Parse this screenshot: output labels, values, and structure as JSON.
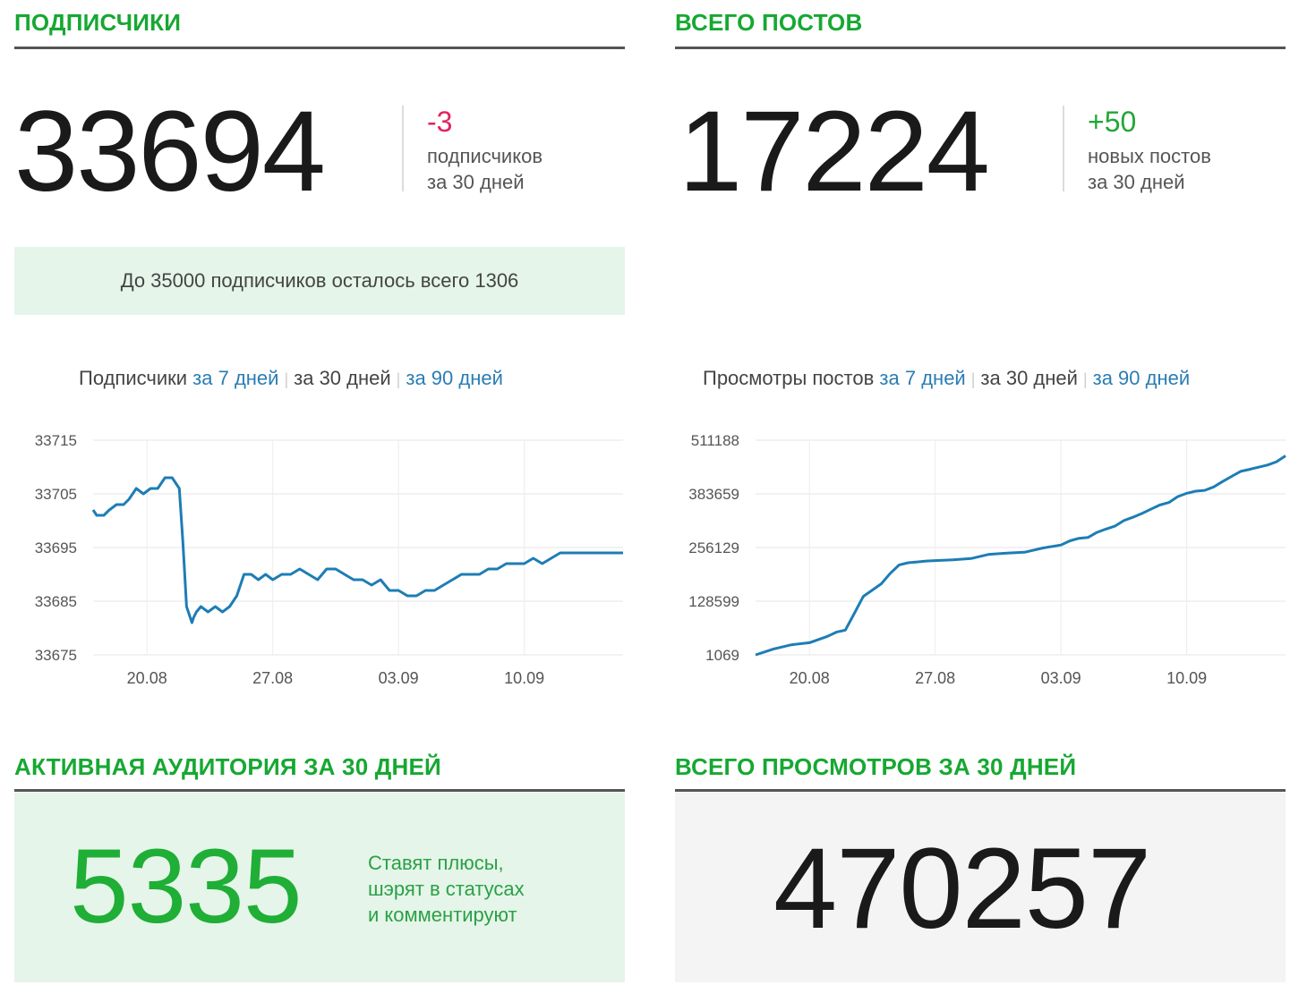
{
  "subscribers": {
    "title": "ПОДПИСЧИКИ",
    "count": "33694",
    "delta": "-3",
    "delta_line1": "подписчиков",
    "delta_line2": "за 30 дней",
    "notice": "До 35000 подписчиков осталось всего 1306"
  },
  "posts": {
    "title": "ВСЕГО ПОСТОВ",
    "count": "17224",
    "delta": "+50",
    "delta_line1": "новых постов",
    "delta_line2": "за 30 дней"
  },
  "subs_chart_header": {
    "label": "Подписчики",
    "link_7": "за 7 дней",
    "current_30": "за 30 дней",
    "link_90": "за 90 дней",
    "sep": "|"
  },
  "views_chart_header": {
    "label": "Просмотры постов",
    "link_7": "за 7 дней",
    "current_30": "за 30 дней",
    "link_90": "за 90 дней",
    "sep": "|"
  },
  "active": {
    "title": "АКТИВНАЯ АУДИТОРИЯ ЗА 30 ДНЕЙ",
    "count": "5335",
    "line1": "Ставят плюсы,",
    "line2": "шэрят в статусах",
    "line3": "и комментируют"
  },
  "views_total": {
    "title": "ВСЕГО ПРОСМОТРОВ ЗА 30 ДНЕЙ",
    "count": "470257"
  },
  "colors": {
    "accent_green": "#16a832",
    "line_blue": "#1d7db5",
    "negative": "#e0245e",
    "link": "#2a7db3"
  },
  "chart_data": [
    {
      "type": "line",
      "title": "",
      "ylim": [
        33675,
        33715
      ],
      "yticks": [
        "33715",
        "33705",
        "33695",
        "33685",
        "33675"
      ],
      "x_ticks": [
        {
          "label": "20.08",
          "x": 3
        },
        {
          "label": "27.08",
          "x": 10
        },
        {
          "label": "03.09",
          "x": 17
        },
        {
          "label": "10.09",
          "x": 24
        }
      ],
      "xlim": [
        0,
        29.5
      ],
      "grid": true,
      "series": [
        {
          "x": [
            0,
            0.2,
            0.6,
            0.9,
            1.3,
            1.7,
            2.0,
            2.4,
            2.8,
            3.2,
            3.6,
            4.0,
            4.4,
            4.8,
            5.0,
            5.2,
            5.5,
            5.6,
            5.75,
            6.0,
            6.4,
            6.8,
            7.2,
            7.6,
            8.0,
            8.4,
            8.8,
            9.2,
            9.6,
            10.0,
            10.5,
            11.0,
            11.5,
            12.0,
            12.5,
            13.0,
            13.5,
            14.0,
            14.5,
            15.0,
            15.5,
            16.0,
            16.5,
            17.0,
            17.5,
            18.0,
            18.5,
            19.0,
            19.5,
            20.0,
            20.5,
            21.0,
            21.5,
            22.0,
            22.5,
            23.0,
            23.5,
            24.0,
            24.5,
            25.0,
            25.5,
            26.0,
            26.5,
            27.0,
            27.5,
            28.0,
            28.5,
            29.0,
            29.5
          ],
          "values": [
            33702,
            33701,
            33701,
            33702,
            33703,
            33703,
            33704,
            33706,
            33705,
            33706,
            33706,
            33708,
            33708,
            33706,
            33696,
            33684,
            33681,
            33682,
            33683,
            33684,
            33683,
            33684,
            33683,
            33684,
            33686,
            33690,
            33690,
            33689,
            33690,
            33689,
            33690,
            33690,
            33691,
            33690,
            33689,
            33691,
            33691,
            33690,
            33689,
            33689,
            33688,
            33689,
            33687,
            33687,
            33686,
            33686,
            33687,
            33687,
            33688,
            33689,
            33690,
            33690,
            33690,
            33691,
            33691,
            33692,
            33692,
            33692,
            33693,
            33692,
            33693,
            33694,
            33694,
            33694,
            33694,
            33694,
            33694,
            33694,
            33694
          ]
        }
      ]
    },
    {
      "type": "line",
      "title": "",
      "ylim": [
        1069,
        511188
      ],
      "yticks": [
        "511188",
        "383659",
        "256129",
        "128599",
        "1069"
      ],
      "x_ticks": [
        {
          "label": "20.08",
          "x": 3
        },
        {
          "label": "27.08",
          "x": 10
        },
        {
          "label": "03.09",
          "x": 17
        },
        {
          "label": "10.09",
          "x": 24
        }
      ],
      "xlim": [
        0,
        29.5
      ],
      "grid": true,
      "series": [
        {
          "x": [
            0,
            1,
            2,
            3,
            4,
            4.5,
            5,
            5.5,
            6,
            6.5,
            7,
            7.5,
            8,
            8.5,
            9,
            9.5,
            10,
            11,
            12,
            13,
            14,
            15,
            16,
            17,
            17.5,
            18,
            18.5,
            19,
            19.5,
            20,
            20.5,
            21,
            21.5,
            22,
            22.5,
            23,
            23.5,
            24,
            24.5,
            25,
            25.5,
            26,
            26.5,
            27,
            27.5,
            28,
            28.5,
            29,
            29.5
          ],
          "values": [
            1069,
            15000,
            25000,
            30000,
            45000,
            55000,
            60000,
            100000,
            140000,
            155000,
            170000,
            195000,
            215000,
            220000,
            222000,
            224000,
            225000,
            227000,
            230000,
            240000,
            243000,
            245000,
            255000,
            262000,
            272000,
            278000,
            280000,
            292000,
            300000,
            307000,
            320000,
            328000,
            337000,
            347000,
            357000,
            363000,
            377000,
            385000,
            390000,
            392000,
            400000,
            413000,
            425000,
            437000,
            442000,
            447000,
            452000,
            460000,
            474000
          ]
        }
      ]
    }
  ]
}
